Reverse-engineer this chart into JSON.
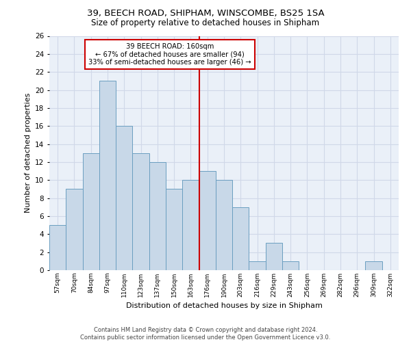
{
  "title": "39, BEECH ROAD, SHIPHAM, WINSCOMBE, BS25 1SA",
  "subtitle": "Size of property relative to detached houses in Shipham",
  "xlabel": "Distribution of detached houses by size in Shipham",
  "ylabel": "Number of detached properties",
  "bar_labels": [
    "57sqm",
    "70sqm",
    "84sqm",
    "97sqm",
    "110sqm",
    "123sqm",
    "137sqm",
    "150sqm",
    "163sqm",
    "176sqm",
    "190sqm",
    "203sqm",
    "216sqm",
    "229sqm",
    "243sqm",
    "256sqm",
    "269sqm",
    "282sqm",
    "296sqm",
    "309sqm",
    "322sqm"
  ],
  "bar_values": [
    5,
    9,
    13,
    21,
    16,
    13,
    12,
    9,
    10,
    11,
    10,
    7,
    1,
    3,
    1,
    0,
    0,
    0,
    0,
    1,
    0
  ],
  "bar_color": "#c8d8e8",
  "bar_edge_color": "#6a9ec0",
  "vline_x_index": 8,
  "annotation_line1": "39 BEECH ROAD: 160sqm",
  "annotation_line2": "← 67% of detached houses are smaller (94)",
  "annotation_line3": "33% of semi-detached houses are larger (46) →",
  "annotation_box_color": "#ffffff",
  "annotation_box_edge": "#cc0000",
  "vline_color": "#cc0000",
  "ylim": [
    0,
    26
  ],
  "yticks": [
    0,
    2,
    4,
    6,
    8,
    10,
    12,
    14,
    16,
    18,
    20,
    22,
    24,
    26
  ],
  "grid_color": "#d0d8e8",
  "background_color": "#eaf0f8",
  "footer_line1": "Contains HM Land Registry data © Crown copyright and database right 2024.",
  "footer_line2": "Contains public sector information licensed under the Open Government Licence v3.0."
}
